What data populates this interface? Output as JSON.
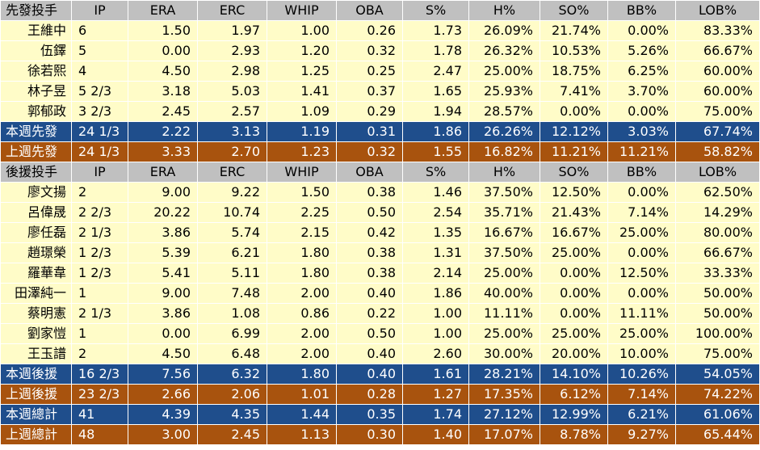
{
  "columns": [
    "IP",
    "ERA",
    "ERC",
    "WHIP",
    "OBA",
    "S%",
    "H%",
    "SO%",
    "BB%",
    "LOB%"
  ],
  "starters": {
    "header_label": "先發投手",
    "rows": [
      {
        "name": "王維中",
        "values": [
          "6",
          "1.50",
          "1.97",
          "1.00",
          "0.26",
          "1.73",
          "26.09%",
          "21.74%",
          "0.00%",
          "83.33%"
        ]
      },
      {
        "name": "伍鐸",
        "values": [
          "5",
          "0.00",
          "2.93",
          "1.20",
          "0.32",
          "1.78",
          "26.32%",
          "10.53%",
          "5.26%",
          "66.67%"
        ]
      },
      {
        "name": "徐若熙",
        "values": [
          "4",
          "4.50",
          "2.98",
          "1.25",
          "0.25",
          "2.47",
          "25.00%",
          "18.75%",
          "6.25%",
          "60.00%"
        ]
      },
      {
        "name": "林子昱",
        "values": [
          "5 2/3",
          "3.18",
          "5.03",
          "1.41",
          "0.37",
          "1.65",
          "25.93%",
          "7.41%",
          "3.70%",
          "60.00%"
        ]
      },
      {
        "name": "郭郁政",
        "values": [
          "3 2/3",
          "2.45",
          "2.57",
          "1.09",
          "0.29",
          "1.94",
          "28.57%",
          "0.00%",
          "0.00%",
          "75.00%"
        ]
      }
    ],
    "summaries": [
      {
        "name": "本週先發",
        "style": "blue",
        "values": [
          "24 1/3",
          "2.22",
          "3.13",
          "1.19",
          "0.31",
          "1.86",
          "26.26%",
          "12.12%",
          "3.03%",
          "67.74%"
        ]
      },
      {
        "name": "上週先發",
        "style": "orange",
        "values": [
          "24 1/3",
          "3.33",
          "2.70",
          "1.23",
          "0.32",
          "1.55",
          "16.82%",
          "11.21%",
          "11.21%",
          "58.82%"
        ]
      }
    ]
  },
  "relievers": {
    "header_label": "後援投手",
    "rows": [
      {
        "name": "廖文揚",
        "values": [
          "2",
          "9.00",
          "9.22",
          "1.50",
          "0.38",
          "1.46",
          "37.50%",
          "12.50%",
          "0.00%",
          "62.50%"
        ]
      },
      {
        "name": "呂偉晟",
        "values": [
          "2 2/3",
          "20.22",
          "10.74",
          "2.25",
          "0.50",
          "2.54",
          "35.71%",
          "21.43%",
          "7.14%",
          "14.29%"
        ]
      },
      {
        "name": "廖任磊",
        "values": [
          "2 1/3",
          "3.86",
          "5.74",
          "2.15",
          "0.42",
          "1.35",
          "16.67%",
          "16.67%",
          "25.00%",
          "80.00%"
        ]
      },
      {
        "name": "趙璟榮",
        "values": [
          "1 2/3",
          "5.39",
          "6.21",
          "1.80",
          "0.38",
          "1.31",
          "37.50%",
          "25.00%",
          "0.00%",
          "66.67%"
        ]
      },
      {
        "name": "羅華韋",
        "values": [
          "1 2/3",
          "5.41",
          "5.11",
          "1.80",
          "0.38",
          "2.14",
          "25.00%",
          "0.00%",
          "12.50%",
          "33.33%"
        ]
      },
      {
        "name": "田澤純一",
        "values": [
          "1",
          "9.00",
          "7.48",
          "2.00",
          "0.40",
          "1.86",
          "40.00%",
          "0.00%",
          "0.00%",
          "50.00%"
        ]
      },
      {
        "name": "蔡明憲",
        "values": [
          "2 1/3",
          "3.86",
          "1.08",
          "0.86",
          "0.22",
          "1.00",
          "11.11%",
          "0.00%",
          "11.11%",
          "50.00%"
        ]
      },
      {
        "name": "劉家愷",
        "values": [
          "1",
          "0.00",
          "6.99",
          "2.00",
          "0.50",
          "1.00",
          "25.00%",
          "25.00%",
          "25.00%",
          "100.00%"
        ]
      },
      {
        "name": "王玉譜",
        "values": [
          "2",
          "4.50",
          "6.48",
          "2.00",
          "0.40",
          "2.60",
          "30.00%",
          "20.00%",
          "10.00%",
          "75.00%"
        ]
      }
    ],
    "summaries": [
      {
        "name": "本週後援",
        "style": "blue",
        "values": [
          "16 2/3",
          "7.56",
          "6.32",
          "1.80",
          "0.40",
          "1.61",
          "28.21%",
          "14.10%",
          "10.26%",
          "54.05%"
        ]
      },
      {
        "name": "上週後援",
        "style": "orange",
        "values": [
          "23 2/3",
          "2.66",
          "2.06",
          "1.01",
          "0.28",
          "1.27",
          "17.35%",
          "6.12%",
          "7.14%",
          "74.22%"
        ]
      }
    ]
  },
  "totals": [
    {
      "name": "本週總計",
      "style": "blue",
      "values": [
        "41",
        "4.39",
        "4.35",
        "1.44",
        "0.35",
        "1.74",
        "27.12%",
        "12.99%",
        "6.21%",
        "61.06%"
      ]
    },
    {
      "name": "上週總計",
      "style": "orange",
      "values": [
        "48",
        "3.00",
        "2.45",
        "1.13",
        "0.30",
        "1.40",
        "17.07%",
        "8.78%",
        "9.27%",
        "65.44%"
      ]
    }
  ],
  "colors": {
    "header_bg": "#c0c0c0",
    "player_bg": "#fffcc8",
    "this_week_bg": "#1f4e8c",
    "last_week_bg": "#a8530e"
  }
}
